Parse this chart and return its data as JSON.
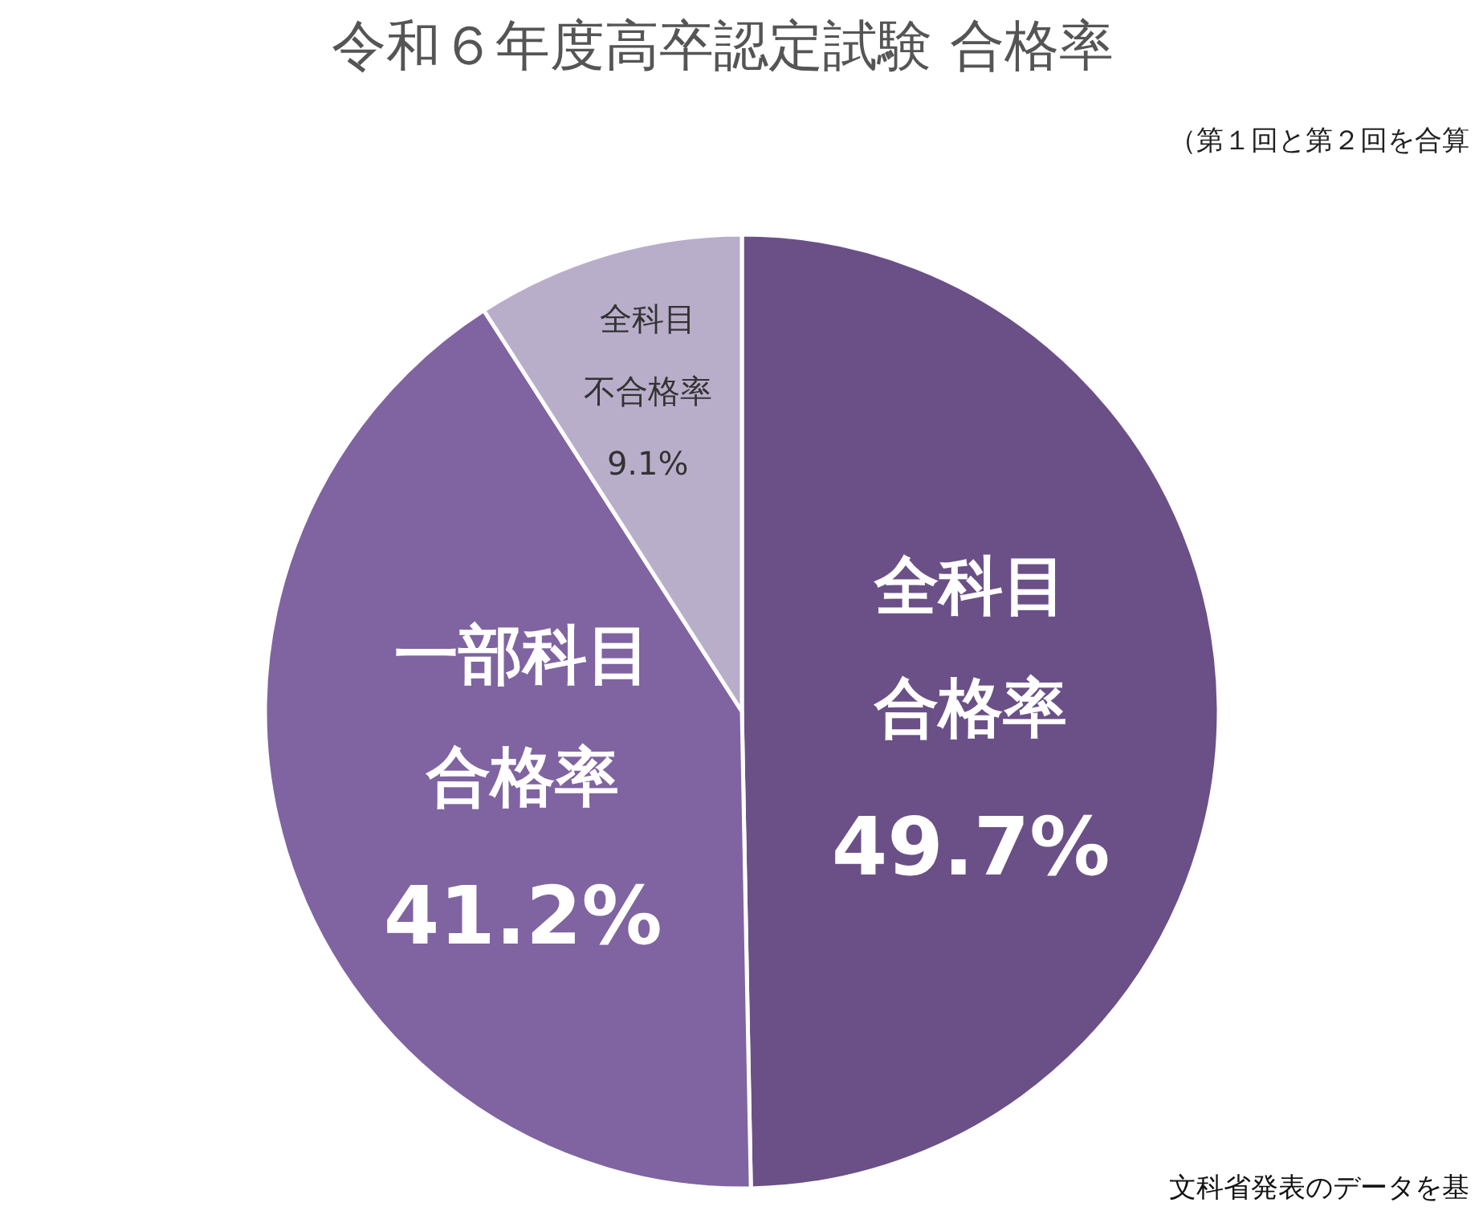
{
  "chart_data": {
    "type": "pie",
    "title": "令和６年度高卒認定試験 合格率",
    "subtitle": "（第１回と第２回を合算",
    "categories": [
      "全科目合格率",
      "一部科目合格率",
      "全科目不合格率"
    ],
    "values": [
      49.7,
      41.2,
      9.1
    ],
    "value_labels": [
      "49.7%",
      "41.2%",
      "9.1%"
    ],
    "colors": [
      "#6a5087",
      "#7f64a1",
      "#b9aeca"
    ],
    "annotations": [
      "文科省発表のデータを基"
    ],
    "legend": false
  }
}
